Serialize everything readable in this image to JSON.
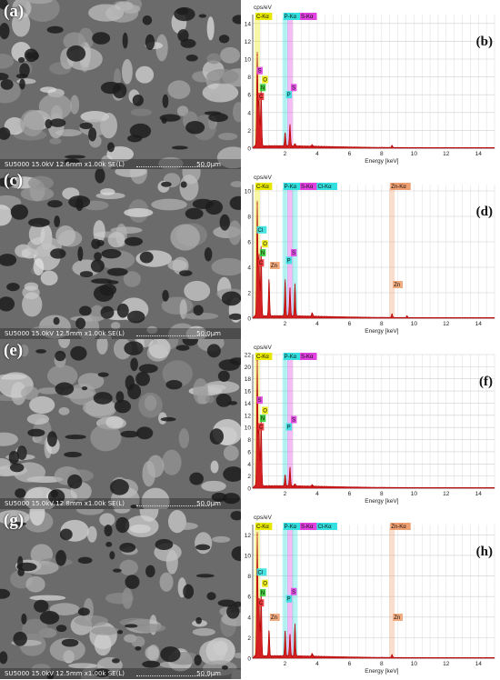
{
  "sem_panels": [
    {
      "label": "(a)",
      "caption": "SU5000 15.0kV 12.6mm x1.00k SE(L)",
      "scale": "50.0μm"
    },
    {
      "label": "(c)",
      "caption": "SU5000 15.0kV 12.5mm x1.00k SE(L)",
      "scale": "50.0μm"
    },
    {
      "label": "(e)",
      "caption": "SU5000 15.0kV 12.8mm x1.00k SE(L)",
      "scale": "50.0μm"
    },
    {
      "label": "(g)",
      "caption": "SU5000 15.0kV 12.5mm x1.00k SE(L)",
      "scale": "50.0μm"
    }
  ],
  "chart_data": [
    {
      "type": "line",
      "panel_label": "(b)",
      "ylabel": "cps/eV",
      "xlabel": "Energy [keV]",
      "ylim": [
        0,
        15
      ],
      "yticks": [
        0,
        2,
        4,
        6,
        8,
        10,
        12,
        14
      ],
      "xlim": [
        0,
        15
      ],
      "xticks": [
        2,
        4,
        6,
        8,
        10,
        12,
        14
      ],
      "peaks": [
        {
          "x": 0.28,
          "y": 10.5
        },
        {
          "x": 0.39,
          "y": 5.5
        },
        {
          "x": 0.52,
          "y": 6.5
        },
        {
          "x": 2.01,
          "y": 1.6
        },
        {
          "x": 2.31,
          "y": 2.5
        },
        {
          "x": 2.62,
          "y": 0.3
        },
        {
          "x": 3.69,
          "y": 0.2
        },
        {
          "x": 8.64,
          "y": 0.25
        }
      ],
      "top_labels": [
        {
          "text": "C-Kα",
          "x": 0.28,
          "color": "#e8e800"
        },
        {
          "text": "P-Kα",
          "x": 2.01,
          "color": "#33e0e0"
        },
        {
          "text": "S-Kα",
          "x": 2.31,
          "color": "#e040e0"
        }
      ],
      "element_markers": [
        {
          "text": "S",
          "x": 0.2,
          "y": 8.5,
          "color": "#e040e0"
        },
        {
          "text": "O",
          "x": 0.52,
          "y": 7.5,
          "color": "#e8e800"
        },
        {
          "text": "N",
          "x": 0.39,
          "y": 6.6,
          "color": "#33cc33"
        },
        {
          "text": "C",
          "x": 0.28,
          "y": 5.6,
          "color": "#ee3333"
        },
        {
          "text": "S",
          "x": 2.31,
          "y": 6.6,
          "color": "#e040e0"
        },
        {
          "text": "P",
          "x": 2.01,
          "y": 5.8,
          "color": "#33e0e0"
        }
      ]
    },
    {
      "type": "line",
      "panel_label": "(d)",
      "ylabel": "cps/eV",
      "xlabel": "Energy [keV]",
      "ylim": [
        0,
        10.5
      ],
      "yticks": [
        0,
        2,
        4,
        6,
        8,
        10
      ],
      "xlim": [
        0,
        15
      ],
      "xticks": [
        2,
        4,
        6,
        8,
        10,
        12,
        14
      ],
      "peaks": [
        {
          "x": 0.28,
          "y": 9.0
        },
        {
          "x": 0.39,
          "y": 5.0
        },
        {
          "x": 0.52,
          "y": 5.5
        },
        {
          "x": 1.01,
          "y": 3.0
        },
        {
          "x": 2.01,
          "y": 3.0
        },
        {
          "x": 2.31,
          "y": 2.3
        },
        {
          "x": 2.62,
          "y": 2.6
        },
        {
          "x": 3.69,
          "y": 0.3
        },
        {
          "x": 8.64,
          "y": 0.3
        },
        {
          "x": 9.57,
          "y": 0.15
        }
      ],
      "top_labels": [
        {
          "text": "C-Kα",
          "x": 0.28,
          "color": "#e8e800"
        },
        {
          "text": "P-Kα",
          "x": 2.01,
          "color": "#33e0e0"
        },
        {
          "text": "S-Kα",
          "x": 2.31,
          "color": "#e040e0"
        },
        {
          "text": "Cl-Kα",
          "x": 2.62,
          "color": "#33e0e0"
        },
        {
          "text": "Zn-Kα",
          "x": 8.64,
          "color": "#f0a070"
        }
      ],
      "element_markers": [
        {
          "text": "Cl",
          "x": 0.2,
          "y": 6.8,
          "color": "#33e0e0"
        },
        {
          "text": "O",
          "x": 0.52,
          "y": 5.7,
          "color": "#e8e800"
        },
        {
          "text": "N",
          "x": 0.39,
          "y": 5.0,
          "color": "#33cc33"
        },
        {
          "text": "C",
          "x": 0.28,
          "y": 4.2,
          "color": "#ee3333"
        },
        {
          "text": "Zn",
          "x": 1.01,
          "y": 4.0,
          "color": "#f0a070"
        },
        {
          "text": "S",
          "x": 2.31,
          "y": 5.0,
          "color": "#e040e0"
        },
        {
          "text": "P",
          "x": 2.01,
          "y": 4.4,
          "color": "#33e0e0"
        },
        {
          "text": "Zn",
          "x": 8.64,
          "y": 2.5,
          "color": "#f0a070"
        }
      ]
    },
    {
      "type": "line",
      "panel_label": "(f)",
      "ylabel": "cps/eV",
      "xlabel": "Energy [keV]",
      "ylim": [
        0,
        22
      ],
      "yticks": [
        0,
        2,
        4,
        6,
        8,
        10,
        12,
        14,
        16,
        18,
        20,
        22
      ],
      "xlim": [
        0,
        15
      ],
      "xticks": [
        2,
        4,
        6,
        8,
        10,
        12,
        14
      ],
      "peaks": [
        {
          "x": 0.28,
          "y": 21
        },
        {
          "x": 0.39,
          "y": 10
        },
        {
          "x": 0.52,
          "y": 11.5
        },
        {
          "x": 2.01,
          "y": 2.0
        },
        {
          "x": 2.31,
          "y": 3.2
        },
        {
          "x": 2.62,
          "y": 0.4
        },
        {
          "x": 3.69,
          "y": 0.3
        }
      ],
      "top_labels": [
        {
          "text": "C-Kα",
          "x": 0.28,
          "color": "#e8e800"
        },
        {
          "text": "P-Kα",
          "x": 2.01,
          "color": "#33e0e0"
        },
        {
          "text": "S-Kα",
          "x": 2.31,
          "color": "#e040e0"
        }
      ],
      "element_markers": [
        {
          "text": "S",
          "x": 0.2,
          "y": 14.2,
          "color": "#e040e0"
        },
        {
          "text": "O",
          "x": 0.52,
          "y": 12.5,
          "color": "#e8e800"
        },
        {
          "text": "N",
          "x": 0.39,
          "y": 11.2,
          "color": "#33cc33"
        },
        {
          "text": "C",
          "x": 0.28,
          "y": 9.8,
          "color": "#ee3333"
        },
        {
          "text": "S",
          "x": 2.31,
          "y": 11.0,
          "color": "#e040e0"
        },
        {
          "text": "P",
          "x": 2.01,
          "y": 9.8,
          "color": "#33e0e0"
        }
      ]
    },
    {
      "type": "line",
      "panel_label": "(h)",
      "ylabel": "cps/eV",
      "xlabel": "Energy [keV]",
      "ylim": [
        0,
        13
      ],
      "yticks": [
        0,
        2,
        4,
        6,
        8,
        10,
        12
      ],
      "xlim": [
        0,
        15
      ],
      "xticks": [
        2,
        4,
        6,
        8,
        10,
        12,
        14
      ],
      "peaks": [
        {
          "x": 0.28,
          "y": 12
        },
        {
          "x": 0.39,
          "y": 5.8
        },
        {
          "x": 0.52,
          "y": 6.5
        },
        {
          "x": 1.01,
          "y": 2.6
        },
        {
          "x": 2.01,
          "y": 2.6
        },
        {
          "x": 2.31,
          "y": 2.2
        },
        {
          "x": 2.62,
          "y": 3.2
        },
        {
          "x": 3.69,
          "y": 0.3
        },
        {
          "x": 8.64,
          "y": 0.3
        }
      ],
      "top_labels": [
        {
          "text": "C-Kα",
          "x": 0.28,
          "color": "#e8e800"
        },
        {
          "text": "P-Kα",
          "x": 2.01,
          "color": "#33e0e0"
        },
        {
          "text": "S-Kα",
          "x": 2.31,
          "color": "#e040e0"
        },
        {
          "text": "Cl-Kα",
          "x": 2.62,
          "color": "#33e0e0"
        },
        {
          "text": "Zn-Kα",
          "x": 8.64,
          "color": "#f0a070"
        }
      ],
      "element_markers": [
        {
          "text": "Cl",
          "x": 0.2,
          "y": 8.2,
          "color": "#33e0e0"
        },
        {
          "text": "O",
          "x": 0.52,
          "y": 7.1,
          "color": "#e8e800"
        },
        {
          "text": "N",
          "x": 0.39,
          "y": 6.2,
          "color": "#33cc33"
        },
        {
          "text": "C",
          "x": 0.28,
          "y": 5.2,
          "color": "#ee3333"
        },
        {
          "text": "Zn",
          "x": 1.01,
          "y": 3.8,
          "color": "#f0a070"
        },
        {
          "text": "S",
          "x": 2.31,
          "y": 6.3,
          "color": "#e040e0"
        },
        {
          "text": "P",
          "x": 2.01,
          "y": 5.6,
          "color": "#33e0e0"
        },
        {
          "text": "Zn",
          "x": 8.64,
          "y": 3.8,
          "color": "#f0a070"
        }
      ]
    }
  ]
}
